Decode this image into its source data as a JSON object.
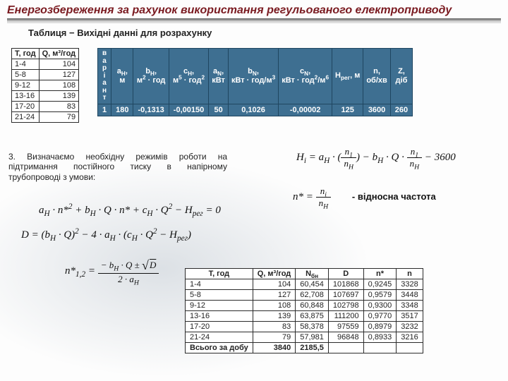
{
  "title": "Енергозбереження за рахунок використання регульованого електроприводу",
  "subtitle": "Таблиця − Вихідні данні для розрахунку",
  "small_table": {
    "headers": [
      "T, год",
      "Q, м³/год"
    ],
    "rows": [
      [
        "1-4",
        "104"
      ],
      [
        "5-8",
        "127"
      ],
      [
        "9-12",
        "108"
      ],
      [
        "13-16",
        "139"
      ],
      [
        "17-20",
        "83"
      ],
      [
        "21-24",
        "79"
      ]
    ]
  },
  "blue_table": {
    "vert_header": "варіант",
    "cols": [
      "a<sub>H</sub>,<br>м",
      "b<sub>H</sub>,<br>м<sup>2</sup>&nbsp;·&nbsp;год",
      "c<sub>H</sub>,<br>м<sup>5</sup>&nbsp;·&nbsp;год<sup>2</sup>",
      "a<sub>N</sub>,<br>кВт",
      "b<sub>N</sub>,<br>кВт&nbsp;·&nbsp;год/м<sup>3</sup>",
      "c<sub>N</sub>,<br>кВт&nbsp;·&nbsp;год<sup>2</sup>/м<sup>6</sup>",
      "H<sub>рег</sub>,&nbsp;м",
      "n,<br>об/хв",
      "Z,<br>діб"
    ],
    "variant": "1",
    "values": [
      "180",
      "-0,1313",
      "-0,00150",
      "50",
      "0,1026",
      "-0,00002",
      "125",
      "3600",
      "260"
    ]
  },
  "step3": "3. Визначаємо необхідну режимів роботи на підтримання постійного тиску в напірному трубопроводі з умови:",
  "eq": {
    "main": "a<sub>H</sub> · n*<sup>2</sup> + b<sub>H</sub> · Q · n* + c<sub>H</sub> · Q<sup>2</sup> − H<sub>рег</sub> = 0",
    "D": "D = (b<sub>H</sub> · Q)<sup>2</sup> − 4 · a<sub>H</sub> · (c<sub>H</sub> · Q<sup>2</sup> − H<sub>рег</sub>)",
    "nstar_top": "− b<sub>H</sub> · Q ± <span class=\"sqrt-sym\">√</span><span class=\"bar\">D</span>",
    "nstar_bot": "2 · a<sub>H</sub>",
    "nstar_lhs": "n*<sub>1,2</sub> =",
    "Hi_lhs": "H<sub>i</sub> = a<sub>H</sub> ·",
    "Hi_f_t": "n<sub>1</sub>",
    "Hi_f_b": "n<sub>H</sub>",
    "Hi_rhs": "− b<sub>H</sub> · Q ·",
    "rel_lhs": "n* =",
    "rel_t": "n<sub>i</sub>",
    "rel_b": "n<sub>H</sub>",
    "rel_label": "- відносна частота"
  },
  "res_table": {
    "headers": [
      "T, год",
      "Q, м³/год",
      "N<sub>бн</sub>",
      "D",
      "n*",
      "n"
    ],
    "rows": [
      [
        "1-4",
        "104",
        "60,454",
        "101868",
        "0,9245",
        "3328"
      ],
      [
        "5-8",
        "127",
        "62,708",
        "107697",
        "0,9579",
        "3448"
      ],
      [
        "9-12",
        "108",
        "60,848",
        "102798",
        "0,9300",
        "3348"
      ],
      [
        "13-16",
        "139",
        "63,875",
        "111200",
        "0,9770",
        "3517"
      ],
      [
        "17-20",
        "83",
        "58,378",
        "97559",
        "0,8979",
        "3232"
      ],
      [
        "21-24",
        "79",
        "57,981",
        "96848",
        "0,8933",
        "3216"
      ]
    ],
    "total_label": "Всього за добу",
    "total": [
      "3840",
      "2185,5",
      "",
      "",
      ""
    ]
  }
}
